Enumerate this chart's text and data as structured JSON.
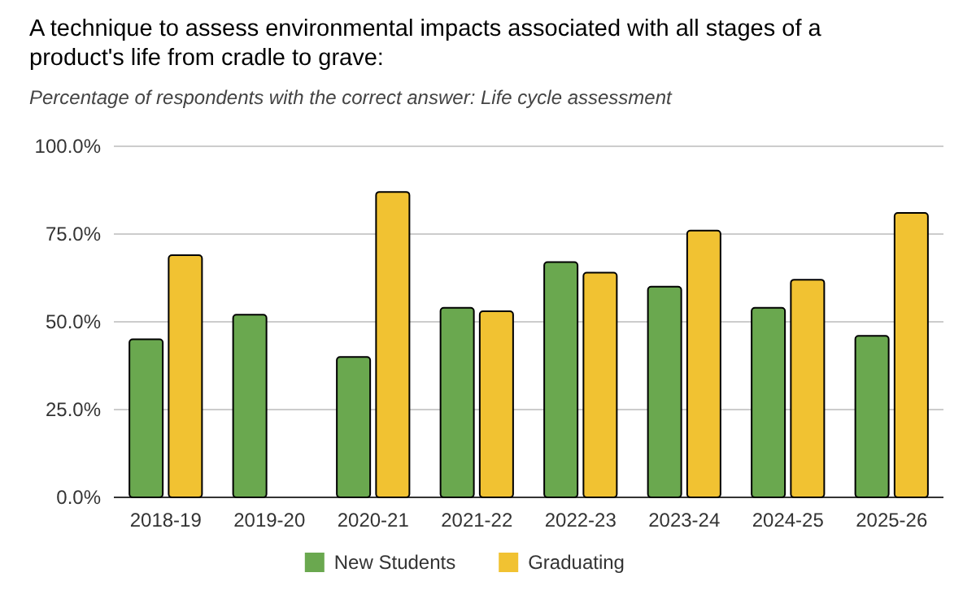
{
  "chart_data": {
    "type": "bar",
    "title": "A technique to assess environmental impacts associated with all stages of a product's life from cradle to grave:",
    "subtitle": "Percentage of respondents with the correct answer: Life cycle assessment",
    "categories": [
      "2018-19",
      "2019-20",
      "2020-21",
      "2021-22",
      "2022-23",
      "2023-24",
      "2024-25",
      "2025-26"
    ],
    "series": [
      {
        "name": "New Students",
        "color": "#6aa84f",
        "values": [
          45,
          52,
          40,
          54,
          67,
          60,
          54,
          46
        ]
      },
      {
        "name": "Graduating",
        "color": "#f1c232",
        "values": [
          69,
          null,
          87,
          53,
          64,
          76,
          62,
          81
        ]
      }
    ],
    "ylim": [
      0,
      100
    ],
    "yticks": [
      {
        "value": 0,
        "label": "0.0%"
      },
      {
        "value": 25,
        "label": "25.0%"
      },
      {
        "value": 50,
        "label": "50.0%"
      },
      {
        "value": 75,
        "label": "75.0%"
      },
      {
        "value": 100,
        "label": "100.0%"
      }
    ],
    "grid": "y",
    "legend": "bottom"
  }
}
